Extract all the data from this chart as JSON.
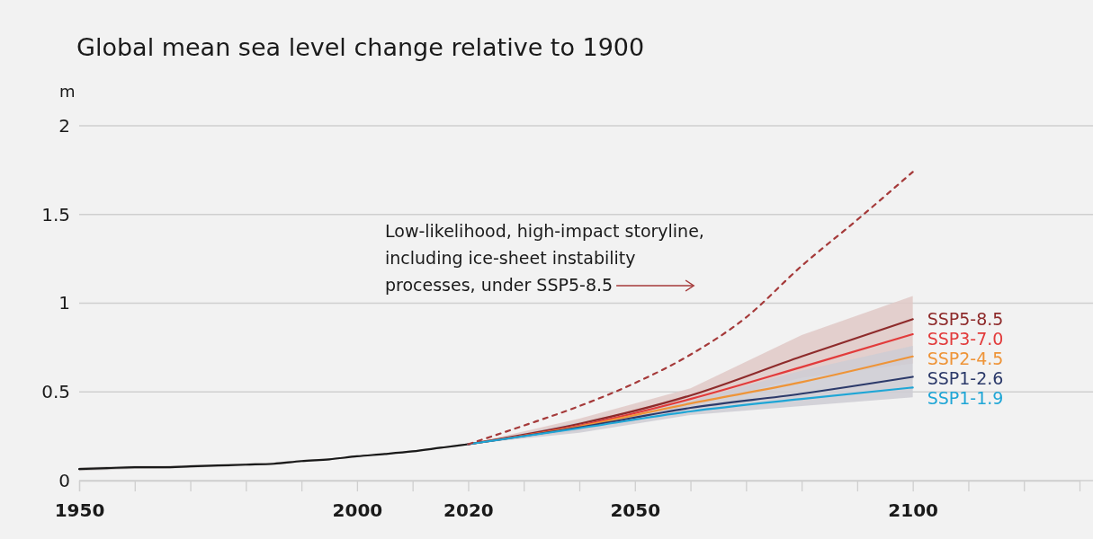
{
  "chart_data": {
    "type": "line",
    "title": "Global mean sea level change relative to 1900",
    "ylabel": "m",
    "xlim": [
      1950,
      2130
    ],
    "ylim": [
      0,
      2
    ],
    "xticks": [
      1950,
      {
        "value": 1960,
        "label": null
      },
      {
        "value": 1970,
        "label": null
      },
      {
        "value": 1980,
        "label": null
      },
      {
        "value": 1990,
        "label": null
      },
      2000,
      {
        "value": 2010,
        "label": null
      },
      2020,
      {
        "value": 2030,
        "label": null
      },
      {
        "value": 2040,
        "label": null
      },
      2050,
      {
        "value": 2060,
        "label": null
      },
      {
        "value": 2070,
        "label": null
      },
      {
        "value": 2080,
        "label": null
      },
      {
        "value": 2090,
        "label": null
      },
      2100,
      {
        "value": 2110,
        "label": null
      },
      {
        "value": 2120,
        "label": null
      }
    ],
    "yticks": [
      0,
      0.5,
      1,
      1.5,
      2
    ],
    "grid": "y",
    "series": [
      {
        "color": "#1a1a1a",
        "x": [
          1950,
          1955,
          1960,
          1965,
          1970,
          1975,
          1980,
          1985,
          1990,
          1995,
          2000,
          2005,
          2010,
          2015,
          2020
        ],
        "values": [
          0.065,
          0.07,
          0.075,
          0.075,
          0.08,
          0.085,
          0.09,
          0.095,
          0.11,
          0.12,
          0.137,
          0.15,
          0.165,
          0.185,
          0.205
        ],
        "lower": [
          0.055,
          0.06,
          0.066,
          0.067,
          0.072,
          0.078,
          0.083,
          0.088,
          0.104,
          0.115,
          0.132,
          0.145,
          0.16,
          0.18,
          0.2
        ],
        "upper": [
          0.075,
          0.08,
          0.084,
          0.083,
          0.088,
          0.092,
          0.097,
          0.102,
          0.116,
          0.125,
          0.142,
          0.155,
          0.17,
          0.19,
          0.21
        ]
      },
      {
        "name": "SSP5-8.5",
        "color": "#8e2b2b",
        "x": [
          2020,
          2040,
          2060,
          2080,
          2100
        ],
        "values": [
          0.205,
          0.32,
          0.48,
          0.7,
          0.91
        ],
        "lower": [
          0.205,
          0.28,
          0.42,
          0.58,
          0.66
        ],
        "upper": [
          0.205,
          0.35,
          0.52,
          0.82,
          1.04
        ]
      },
      {
        "name": "SSP3-7.0",
        "color": "#e23b3b",
        "x": [
          2020,
          2040,
          2060,
          2080,
          2100
        ],
        "values": [
          0.205,
          0.31,
          0.46,
          0.64,
          0.825
        ]
      },
      {
        "name": "SSP2-4.5",
        "color": "#ee9438",
        "x": [
          2020,
          2040,
          2060,
          2080,
          2100
        ],
        "values": [
          0.205,
          0.305,
          0.435,
          0.555,
          0.7
        ]
      },
      {
        "name": "SSP1-2.6",
        "color": "#2c3a6a",
        "x": [
          2020,
          2040,
          2060,
          2080,
          2100
        ],
        "values": [
          0.205,
          0.3,
          0.41,
          0.49,
          0.585
        ],
        "lower": [
          0.205,
          0.27,
          0.37,
          0.42,
          0.47
        ],
        "upper": [
          0.205,
          0.33,
          0.45,
          0.62,
          0.76
        ]
      },
      {
        "name": "SSP1-1.9",
        "color": "#1fa6d6",
        "x": [
          2020,
          2040,
          2060,
          2080,
          2100
        ],
        "values": [
          0.205,
          0.295,
          0.39,
          0.46,
          0.525
        ]
      },
      {
        "color": "#a53a3a",
        "line_style": "dashed",
        "x": [
          2020,
          2030,
          2040,
          2050,
          2060,
          2070,
          2080,
          2090,
          2100
        ],
        "values": [
          0.205,
          0.31,
          0.42,
          0.55,
          0.71,
          0.92,
          1.21,
          1.47,
          1.74
        ]
      }
    ],
    "annotations": [
      "Low-likelihood, high-impact storyline, including ice-sheet instability processes, under SSP5-8.5"
    ]
  }
}
